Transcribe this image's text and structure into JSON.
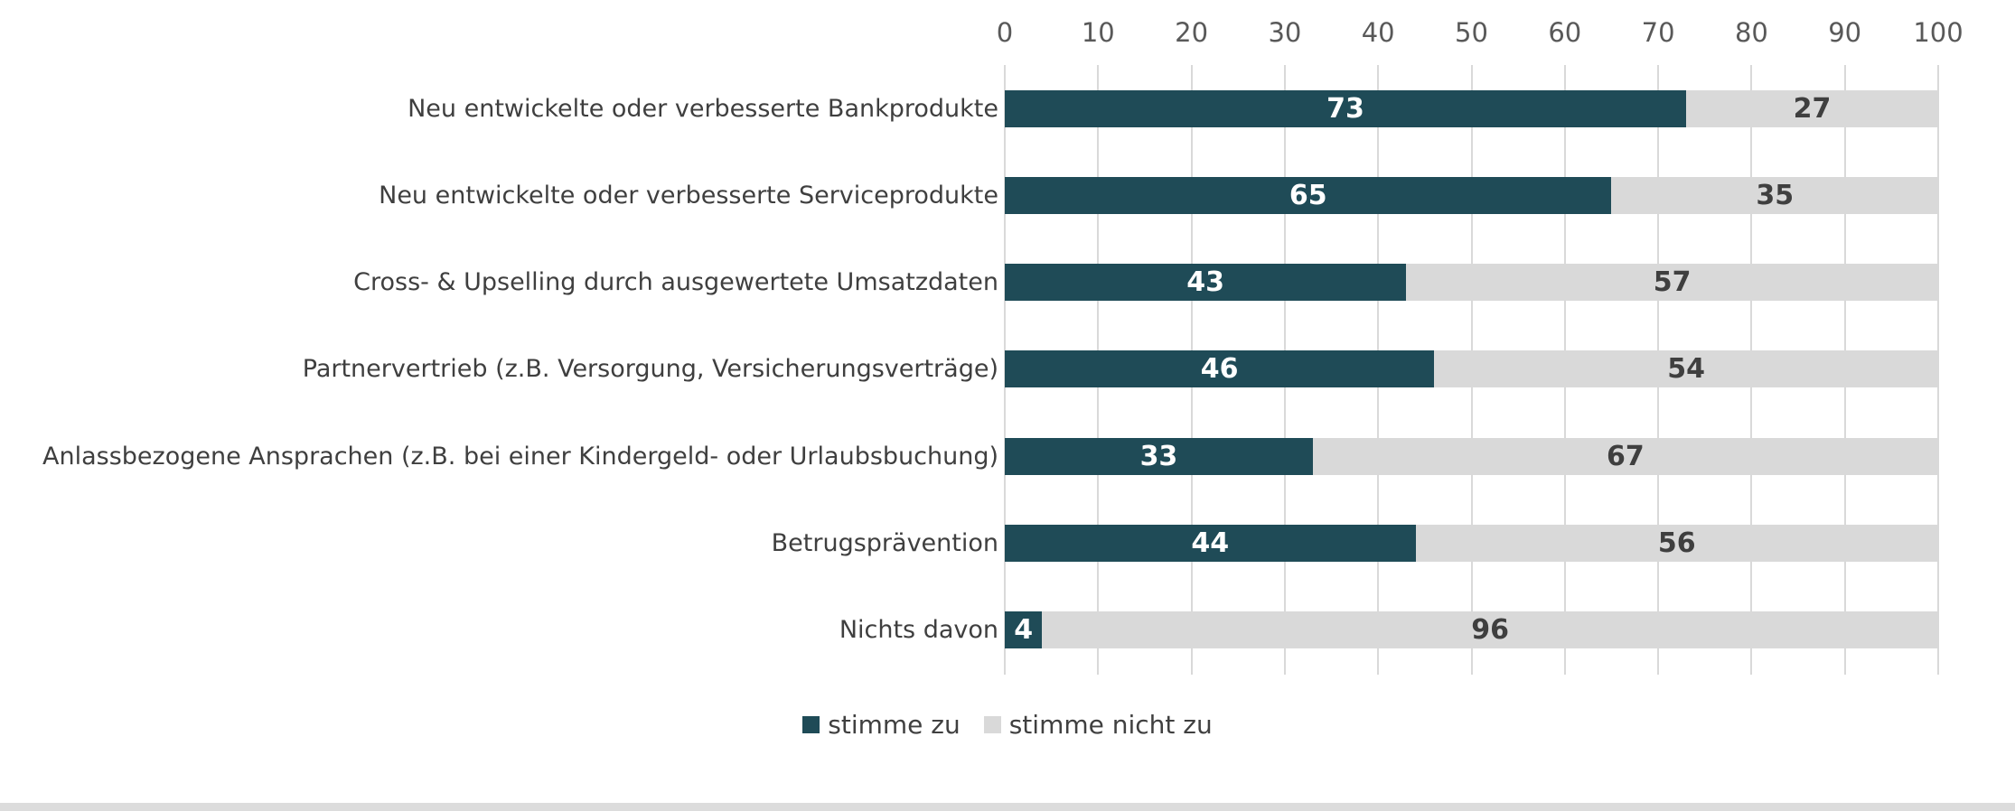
{
  "page": {
    "background_color": "#ffffff",
    "bottom_strip_color": "#dcdcdc"
  },
  "chart_data": {
    "type": "bar",
    "orientation": "horizontal",
    "stacked": true,
    "title": "",
    "categories": [
      "Neu entwickelte oder verbesserte Bankprodukte",
      "Neu entwickelte oder verbesserte Serviceprodukte",
      "Cross- & Upselling durch ausgewertete Umsatzdaten",
      "Partnervertrieb (z.B. Versorgung, Versicherungsverträge)",
      "Anlassbezogene Ansprachen (z.B. bei einer Kindergeld- oder Urlaubsbuchung)",
      "Betrugsprävention",
      "Nichts davon"
    ],
    "series": [
      {
        "name": "stimme zu",
        "color": "#1F4B57",
        "label_color": "#ffffff",
        "values": [
          73,
          65,
          43,
          46,
          33,
          44,
          4
        ]
      },
      {
        "name": "stimme nicht zu",
        "color": "#D9D9D9",
        "label_color": "#3F3F3F",
        "values": [
          27,
          35,
          57,
          54,
          67,
          56,
          96
        ]
      }
    ],
    "x_axis": {
      "position": "top",
      "min": 0,
      "max": 100,
      "tick_step": 10,
      "ticks": [
        0,
        10,
        20,
        30,
        40,
        50,
        60,
        70,
        80,
        90,
        100
      ],
      "tick_label_color": "#595959"
    },
    "grid": {
      "vertical": true,
      "color": "#D9D9D9"
    },
    "legend": {
      "position": "bottom-center",
      "entries": [
        "stimme zu",
        "stimme nicht zu"
      ]
    },
    "category_label_color": "#3F3F3F"
  }
}
